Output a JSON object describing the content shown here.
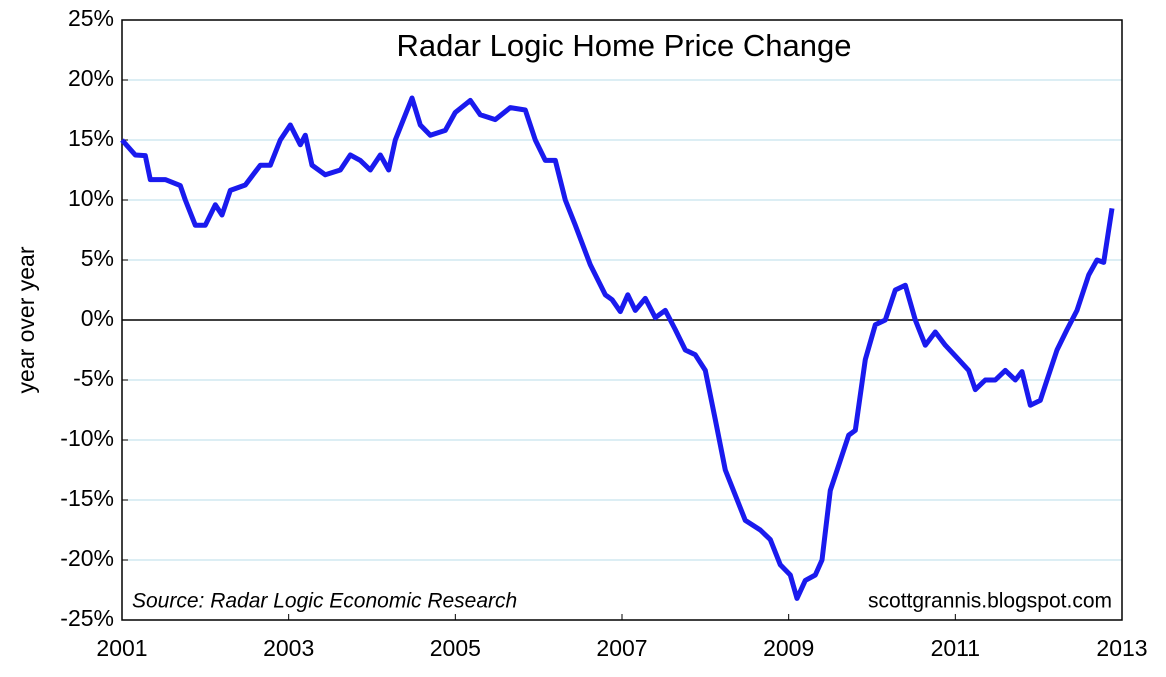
{
  "chart_data": {
    "type": "line",
    "title": "Radar Logic Home Price Change",
    "y_label": "year over year",
    "annotations": [
      "Source: Radar Logic Economic Research",
      "scottgrannis.blogspot.com"
    ],
    "x": [
      2001.0,
      2001.16,
      2001.28,
      2001.34,
      2001.52,
      2001.7,
      2001.76,
      2001.88,
      2002.0,
      2002.12,
      2002.2,
      2002.3,
      2002.48,
      2002.66,
      2002.78,
      2002.9,
      2003.02,
      2003.14,
      2003.2,
      2003.28,
      2003.44,
      2003.62,
      2003.74,
      2003.86,
      2003.98,
      2004.1,
      2004.2,
      2004.28,
      2004.4,
      2004.48,
      2004.58,
      2004.7,
      2004.88,
      2005.0,
      2005.18,
      2005.3,
      2005.48,
      2005.66,
      2005.84,
      2005.96,
      2006.08,
      2006.2,
      2006.32,
      2006.44,
      2006.62,
      2006.8,
      2006.88,
      2006.98,
      2007.07,
      2007.16,
      2007.28,
      2007.4,
      2007.52,
      2007.64,
      2007.76,
      2007.88,
      2008.0,
      2008.12,
      2008.24,
      2008.36,
      2008.48,
      2008.66,
      2008.78,
      2008.9,
      2009.02,
      2009.1,
      2009.2,
      2009.32,
      2009.4,
      2009.5,
      2009.62,
      2009.72,
      2009.8,
      2009.92,
      2010.04,
      2010.16,
      2010.28,
      2010.4,
      2010.52,
      2010.64,
      2010.76,
      2010.88,
      2011.04,
      2011.16,
      2011.24,
      2011.36,
      2011.48,
      2011.6,
      2011.72,
      2011.8,
      2011.9,
      2012.02,
      2012.1,
      2012.22,
      2012.34,
      2012.46,
      2012.6,
      2012.7,
      2012.78,
      2012.88
    ],
    "series": [
      {
        "name": "Radar Logic Home Price Change",
        "color": "#1a1aee",
        "values": [
          15.0,
          13.75,
          13.7,
          11.7,
          11.7,
          11.2,
          10.0,
          7.9,
          7.9,
          9.6,
          8.75,
          10.8,
          11.25,
          12.9,
          12.9,
          15.0,
          16.25,
          14.6,
          15.4,
          12.9,
          12.1,
          12.5,
          13.75,
          13.3,
          12.5,
          13.75,
          12.5,
          15.0,
          17.1,
          18.5,
          16.25,
          15.4,
          15.8,
          17.3,
          18.3,
          17.1,
          16.7,
          17.7,
          17.5,
          15.0,
          13.3,
          13.3,
          10.0,
          7.9,
          4.6,
          2.1,
          1.7,
          0.7,
          2.1,
          0.8,
          1.8,
          0.2,
          0.8,
          -0.8,
          -2.5,
          -2.9,
          -4.2,
          -8.3,
          -12.5,
          -14.6,
          -16.7,
          -17.5,
          -18.3,
          -20.4,
          -21.25,
          -23.2,
          -21.7,
          -21.25,
          -20.0,
          -14.2,
          -11.7,
          -9.6,
          -9.2,
          -3.3,
          -0.4,
          0.0,
          2.5,
          2.9,
          0.0,
          -2.1,
          -1.0,
          -2.1,
          -3.3,
          -4.2,
          -5.8,
          -5.0,
          -5.0,
          -4.2,
          -5.0,
          -4.3,
          -7.1,
          -6.7,
          -5.0,
          -2.5,
          -0.8,
          0.8,
          3.75,
          5.0,
          4.8,
          9.3
        ]
      }
    ],
    "xlim": [
      2001,
      2013
    ],
    "xticks": [
      2001,
      2003,
      2005,
      2007,
      2009,
      2011,
      2013
    ],
    "ylim": [
      -25,
      25
    ],
    "yticks": [
      {
        "value": -25,
        "label": "-25%"
      },
      {
        "value": -20,
        "label": "-20%"
      },
      {
        "value": -15,
        "label": "-15%"
      },
      {
        "value": -10,
        "label": "-10%"
      },
      {
        "value": -5,
        "label": "-5%"
      },
      {
        "value": 0,
        "label": "0%"
      },
      {
        "value": 5,
        "label": "5%"
      },
      {
        "value": 10,
        "label": "10%"
      },
      {
        "value": 15,
        "label": "15%"
      },
      {
        "value": 20,
        "label": "20%"
      },
      {
        "value": 25,
        "label": "25%"
      }
    ],
    "grid": true
  }
}
